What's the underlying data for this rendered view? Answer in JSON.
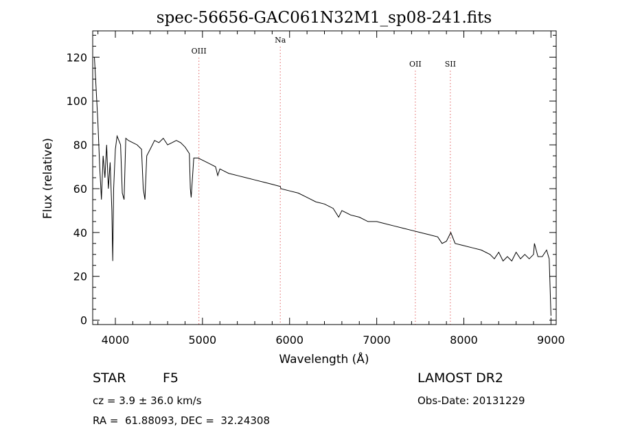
{
  "chart_data": {
    "type": "line",
    "title": "spec-56656-GAC061N32M1_sp08-241.fits",
    "xlabel": "Wavelength (Å)",
    "ylabel": "Flux (relative)",
    "xlim": [
      3740,
      9060
    ],
    "ylim": [
      -2,
      132
    ],
    "x_ticks": [
      4000,
      5000,
      6000,
      7000,
      8000,
      9000
    ],
    "y_ticks": [
      0,
      20,
      40,
      60,
      80,
      100,
      120
    ],
    "grid": false,
    "line_color": "#000000",
    "marker_color": "#e06060",
    "spectral_lines": [
      {
        "label": "OIII",
        "wavelength": 4959
      },
      {
        "label": "Na",
        "wavelength": 5893
      },
      {
        "label": "OII",
        "wavelength": 7443
      },
      {
        "label": "SII",
        "wavelength": 7845
      }
    ],
    "series": [
      {
        "x": [
          3760,
          3780,
          3800,
          3820,
          3840,
          3860,
          3880,
          3900,
          3920,
          3940,
          3960,
          3970,
          3980,
          4000,
          4020,
          4040,
          4060,
          4080,
          4100,
          4120,
          4150,
          4200,
          4250,
          4300,
          4320,
          4340,
          4360,
          4400,
          4450,
          4500,
          4550,
          4600,
          4650,
          4700,
          4750,
          4800,
          4850,
          4861,
          4870,
          4900,
          4950,
          5000,
          5050,
          5100,
          5150,
          5175,
          5200,
          5250,
          5300,
          5400,
          5500,
          5600,
          5700,
          5800,
          5893,
          5900,
          6000,
          6100,
          6200,
          6300,
          6400,
          6500,
          6563,
          6600,
          6700,
          6800,
          6900,
          7000,
          7100,
          7200,
          7300,
          7400,
          7500,
          7600,
          7700,
          7750,
          7800,
          7850,
          7900,
          8000,
          8100,
          8200,
          8300,
          8350,
          8400,
          8450,
          8500,
          8550,
          8600,
          8650,
          8700,
          8750,
          8800,
          8810,
          8850,
          8900,
          8950,
          8980,
          9000
        ],
        "y": [
          120,
          105,
          90,
          70,
          55,
          75,
          65,
          80,
          60,
          72,
          50,
          27,
          60,
          78,
          84,
          82,
          80,
          58,
          55,
          83,
          82,
          81,
          80,
          78,
          60,
          55,
          75,
          78,
          82,
          81,
          83,
          80,
          81,
          82,
          81,
          79,
          76,
          60,
          56,
          74,
          74,
          73,
          72,
          71,
          70,
          66,
          69,
          68,
          67,
          66,
          65,
          64,
          63,
          62,
          61,
          60,
          59,
          58,
          56,
          54,
          53,
          51,
          47,
          50,
          48,
          47,
          45,
          45,
          44,
          43,
          42,
          41,
          40,
          39,
          38,
          35,
          36,
          40,
          35,
          34,
          33,
          32,
          30,
          28,
          31,
          27,
          29,
          27,
          31,
          28,
          30,
          28,
          30,
          35,
          29,
          29,
          32,
          28,
          2
        ]
      }
    ]
  },
  "info": {
    "object_type": "STAR",
    "subclass": "F5",
    "survey": "LAMOST DR2",
    "redshift": "cz = 3.9 ± 36.0 km/s",
    "obs_date": "Obs-Date: 20131229",
    "coords": "RA =  61.88093, DEC =  32.24308"
  }
}
